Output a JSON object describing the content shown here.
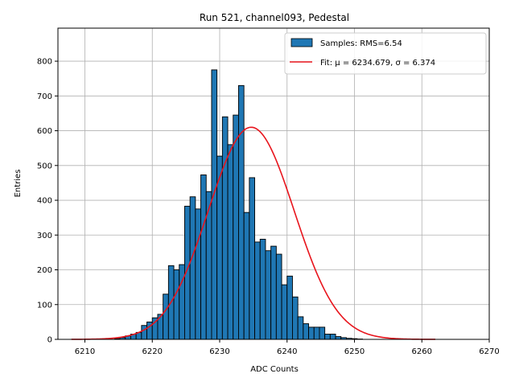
{
  "chart_data": {
    "type": "bar",
    "title": "Run 521, channel093, Pedestal",
    "xlabel": "ADC Counts",
    "ylabel": "Entries",
    "xlim": [
      6206,
      6270
    ],
    "ylim": [
      0,
      895
    ],
    "grid": true,
    "bin_width": 0.8,
    "xticks": [
      6210,
      6220,
      6230,
      6240,
      6250,
      6260,
      6270
    ],
    "yticks": [
      0,
      100,
      200,
      300,
      400,
      500,
      600,
      700,
      800
    ],
    "bins_start": [
      6214.4,
      6215.2,
      6216.0,
      6216.8,
      6217.6,
      6218.4,
      6219.2,
      6220.0,
      6220.8,
      6221.6,
      6222.4,
      6223.2,
      6224.0,
      6224.8,
      6225.6,
      6226.4,
      6227.2,
      6228.0,
      6228.8,
      6229.6,
      6230.4,
      6231.2,
      6232.0,
      6232.8,
      6233.6,
      6234.4,
      6235.2,
      6236.0,
      6236.8,
      6237.6,
      6238.4,
      6239.2,
      6240.0,
      6240.8,
      6241.6,
      6242.4,
      6243.2,
      6244.0,
      6244.8,
      6245.6,
      6246.4,
      6247.2,
      6248.0,
      6248.8,
      6249.6,
      6250.4,
      6251.2,
      6252.0,
      6252.8,
      6253.6,
      6254.4,
      6255.2
    ],
    "counts": [
      2,
      5,
      10,
      15,
      20,
      40,
      50,
      62,
      72,
      130,
      212,
      200,
      215,
      383,
      410,
      375,
      473,
      425,
      775,
      527,
      640,
      560,
      645,
      730,
      365,
      465,
      280,
      288,
      255,
      268,
      245,
      157,
      182,
      122,
      65,
      45,
      35,
      35,
      35,
      15,
      15,
      8,
      5,
      3,
      2,
      1,
      0,
      0,
      0,
      0,
      0,
      0
    ],
    "fit": {
      "mu": 6234.679,
      "sigma": 6.374,
      "amplitude": 610,
      "x_range": [
        6208,
        6262
      ]
    },
    "series": [
      {
        "name": "Samples: RMS=6.54",
        "kind": "histogram",
        "color": "#1f77b4"
      },
      {
        "name": "Fit: μ = 6234.679, σ = 6.374",
        "kind": "line",
        "color": "#e8141c"
      }
    ],
    "legend_position": "top-right"
  }
}
